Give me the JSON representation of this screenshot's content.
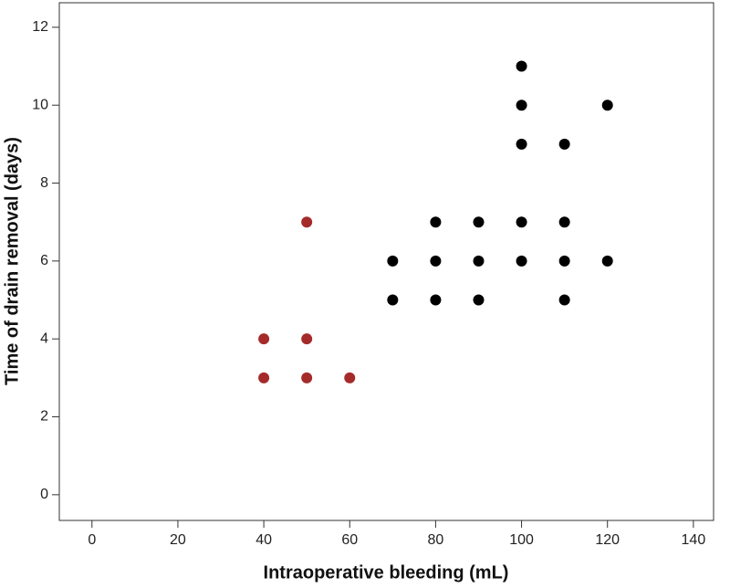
{
  "chart_data": {
    "type": "scatter",
    "x_label": "Intraoperative bleeding (mL)",
    "y_label": "Time of drain removal (days)",
    "xlim": [
      -7.6,
      144.7
    ],
    "xticks": [
      0,
      20,
      40,
      60,
      80,
      100,
      120,
      140
    ],
    "ylim": [
      -0.66,
      12.63
    ],
    "yticks": [
      0,
      2,
      4,
      6,
      8,
      10,
      12
    ],
    "series": [
      {
        "color": "#a52a2a",
        "x": [
          40,
          40,
          50,
          50,
          50,
          60
        ],
        "y": [
          4,
          3,
          7,
          4,
          3,
          3
        ]
      },
      {
        "color": "#000000",
        "x": [
          70,
          70,
          80,
          80,
          80,
          90,
          90,
          90,
          100,
          100,
          100,
          100,
          100,
          110,
          110,
          110,
          110,
          120,
          120
        ],
        "y": [
          6,
          5,
          7,
          6,
          5,
          7,
          6,
          5,
          11,
          10,
          9,
          7,
          6,
          9,
          7,
          6,
          5,
          10,
          6
        ]
      }
    ]
  }
}
